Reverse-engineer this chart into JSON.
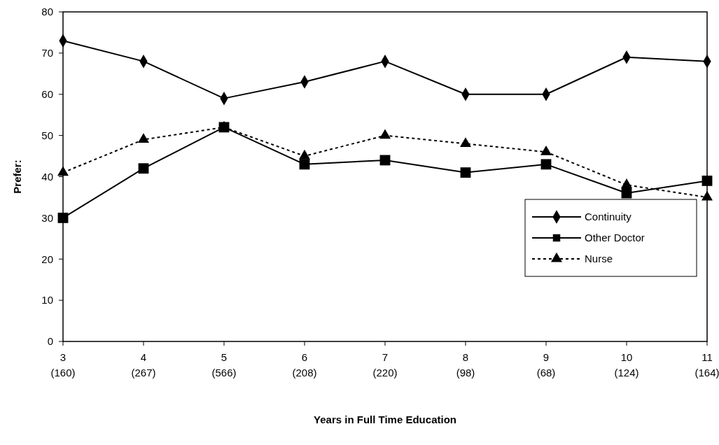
{
  "chart_data": {
    "type": "line",
    "xlabel": "Years in Full Time Education",
    "ylabel": "Prefer:",
    "categories": [
      "3\n(160)",
      "4\n(267)",
      "5\n(566)",
      "6\n(208)",
      "7\n(220)",
      "8\n(98)",
      "9\n(68)",
      "10\n(124)",
      "11\n(164)"
    ],
    "series": [
      {
        "name": "Continuity",
        "color": "#000000",
        "marker": "diamond",
        "line_style": "solid",
        "values": [
          73,
          68,
          59,
          63,
          68,
          60,
          60,
          69,
          68
        ]
      },
      {
        "name": "Other Doctor",
        "color": "#000000",
        "marker": "square",
        "line_style": "solid",
        "values": [
          30,
          42,
          52,
          43,
          44,
          41,
          43,
          36,
          39
        ]
      },
      {
        "name": "Nurse",
        "color": "#000000",
        "marker": "triangle",
        "line_style": "dotted",
        "values": [
          41,
          49,
          52,
          45,
          50,
          48,
          46,
          38,
          35
        ]
      }
    ],
    "ylim": [
      0,
      80
    ],
    "yticks": [
      0,
      10,
      20,
      30,
      40,
      50,
      60,
      70,
      80
    ],
    "grid": false,
    "legend": "right"
  }
}
